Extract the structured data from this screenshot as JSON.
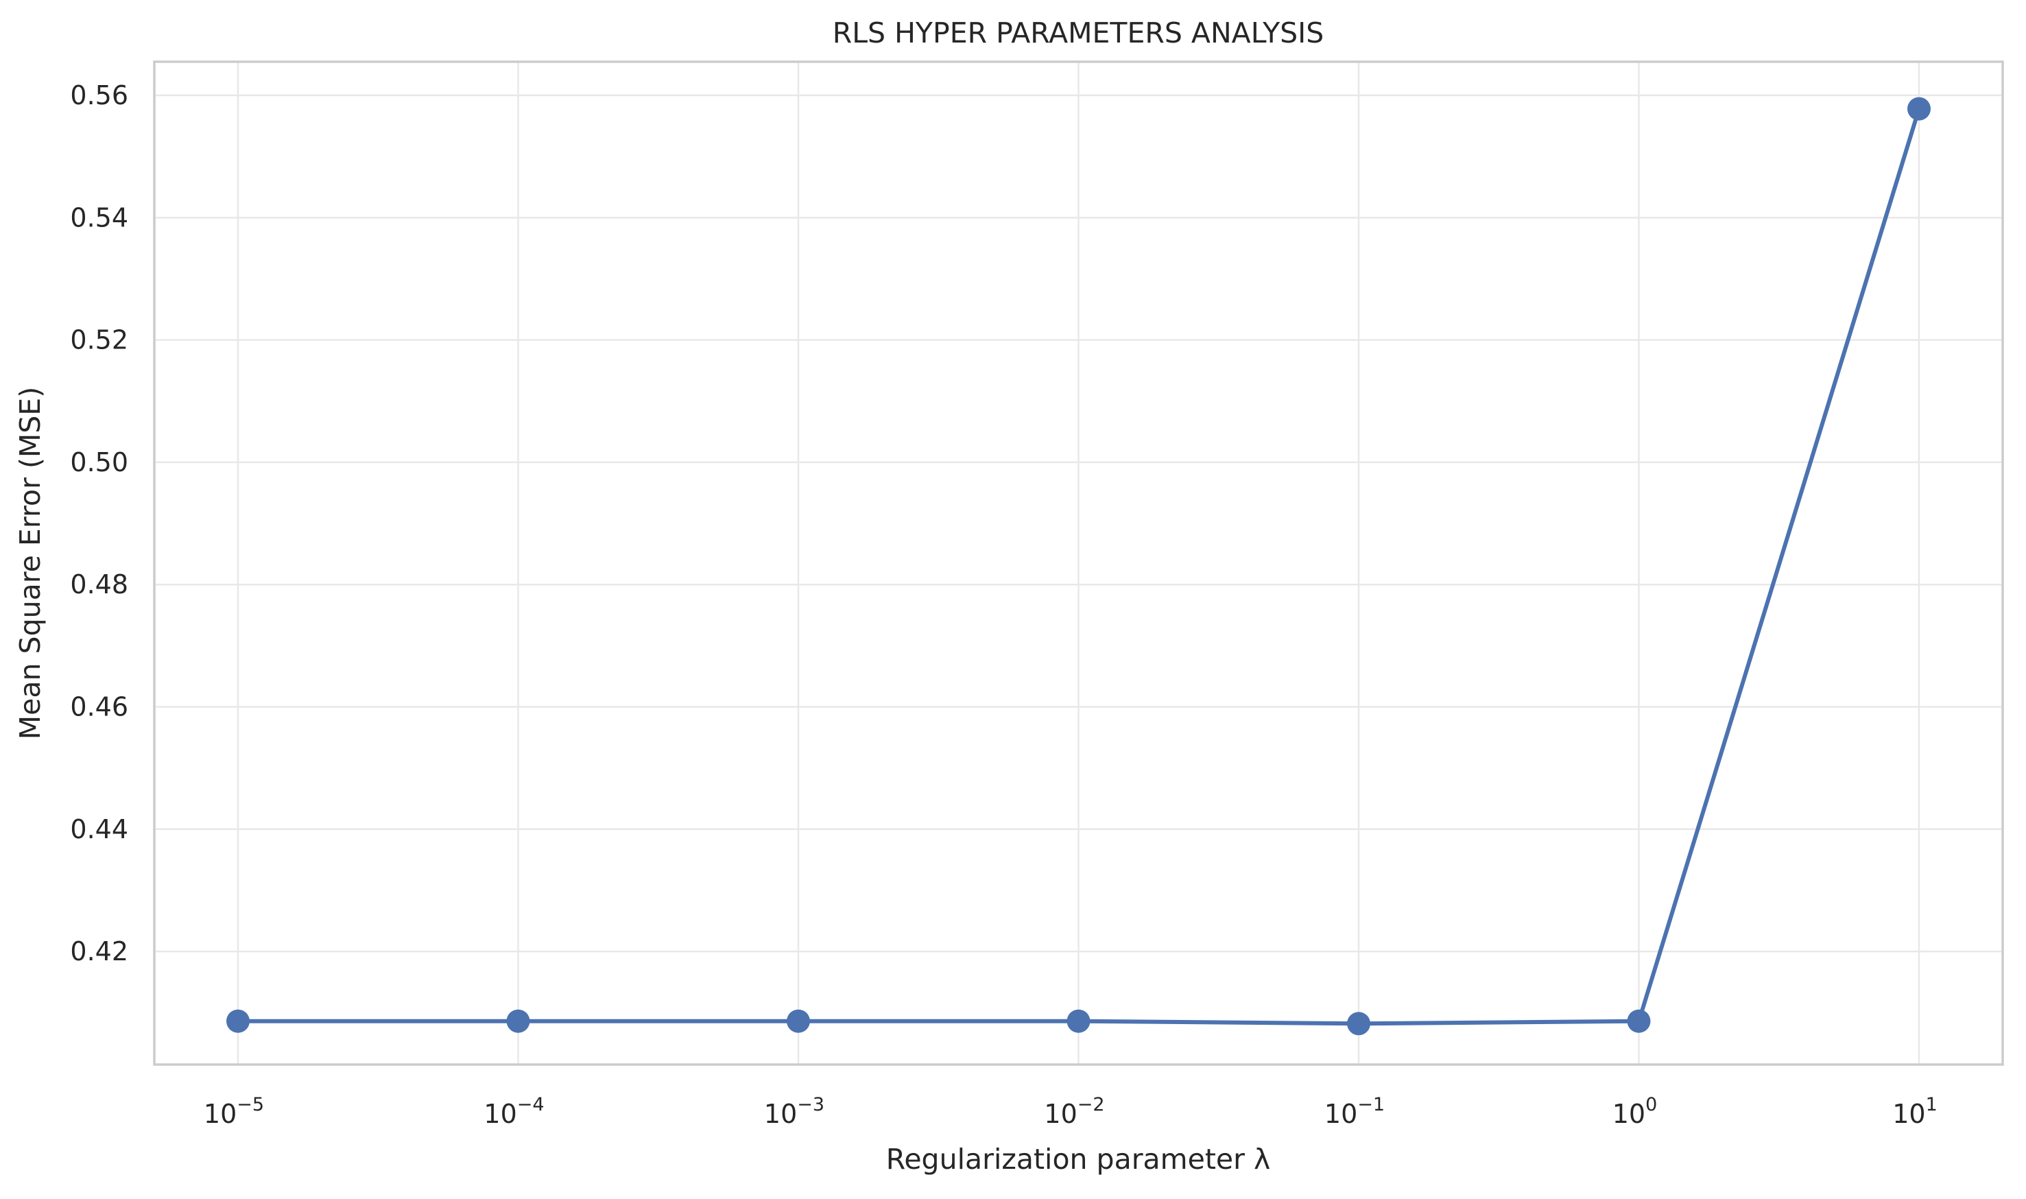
{
  "chart_data": {
    "type": "line",
    "title": "RLS HYPER PARAMETERS ANALYSIS",
    "xlabel": "Regularization parameter λ",
    "ylabel": "Mean Square Error (MSE)",
    "x_scale": "log",
    "x": [
      1e-05,
      0.0001,
      0.001,
      0.01,
      0.1,
      1,
      10
    ],
    "x_tick_labels": [
      {
        "base": "10",
        "exp": "−5"
      },
      {
        "base": "10",
        "exp": "−4"
      },
      {
        "base": "10",
        "exp": "−3"
      },
      {
        "base": "10",
        "exp": "−2"
      },
      {
        "base": "10",
        "exp": "−1"
      },
      {
        "base": "10",
        "exp": "0"
      },
      {
        "base": "10",
        "exp": "1"
      }
    ],
    "y_ticks": [
      "0.42",
      "0.44",
      "0.46",
      "0.48",
      "0.50",
      "0.52",
      "0.54",
      "0.56"
    ],
    "ylim": [
      0.4015,
      0.5655
    ],
    "series": [
      {
        "values": [
          0.4086,
          0.4086,
          0.4086,
          0.4086,
          0.4082,
          0.4086,
          0.5578
        ],
        "color": "#4c72b0"
      }
    ],
    "grid": true,
    "legend": "none"
  }
}
